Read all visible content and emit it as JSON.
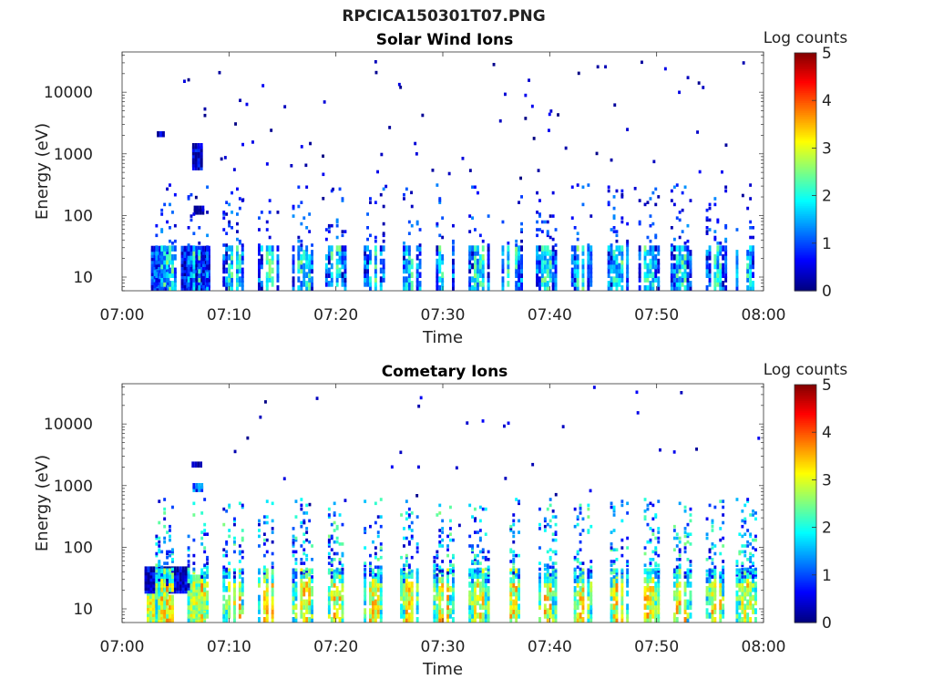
{
  "figure_title": "RPCICA150301T07.PNG",
  "chart_data": [
    {
      "type": "heatmap",
      "title": "Solar Wind Ions",
      "xlabel": "Time",
      "ylabel": "Energy (eV)",
      "y_scale": "log",
      "ylim": [
        6,
        45000
      ],
      "xlim": [
        "07:00",
        "08:00"
      ],
      "x_ticks": [
        "07:00",
        "07:10",
        "07:20",
        "07:30",
        "07:40",
        "07:50",
        "08:00"
      ],
      "y_ticks": [
        {
          "value": 10,
          "label": "10"
        },
        {
          "value": 100,
          "label": "100"
        },
        {
          "value": 1000,
          "label": "1000"
        },
        {
          "value": 10000,
          "label": "10000"
        }
      ],
      "colorbar": {
        "label": "Log counts",
        "min": 0,
        "max": 5,
        "ticks": [
          "0",
          "1",
          "2",
          "3",
          "4",
          "5"
        ],
        "colormap": "jet"
      },
      "bursts_minutes": [
        4.0,
        7.0,
        10.3,
        13.6,
        16.8,
        19.9,
        23.5,
        26.9,
        30.0,
        33.3,
        36.4,
        39.6,
        42.9,
        46.3,
        49.2,
        52.2,
        55.5,
        58.3
      ],
      "features": [
        {
          "t": 3.5,
          "tw": 1.6,
          "e0": 6,
          "e1": 28,
          "v": 0.9
        },
        {
          "t": 6.8,
          "tw": 2.6,
          "e0": 6,
          "e1": 28,
          "v": 0.6
        },
        {
          "t": 7.0,
          "tw": 0.9,
          "e0": 550,
          "e1": 1250,
          "v": 0.4
        },
        {
          "t": 3.6,
          "tw": 0.7,
          "e0": 1900,
          "e1": 2100,
          "v": 0.3
        },
        {
          "t": 7.1,
          "tw": 0.8,
          "e0": 105,
          "e1": 120,
          "v": 0.2
        }
      ]
    },
    {
      "type": "heatmap",
      "title": "Cometary Ions",
      "xlabel": "Time",
      "ylabel": "Energy (eV)",
      "y_scale": "log",
      "ylim": [
        6,
        45000
      ],
      "xlim": [
        "07:00",
        "08:00"
      ],
      "x_ticks": [
        "07:00",
        "07:10",
        "07:20",
        "07:30",
        "07:40",
        "07:50",
        "08:00"
      ],
      "y_ticks": [
        {
          "value": 10,
          "label": "10"
        },
        {
          "value": 100,
          "label": "100"
        },
        {
          "value": 1000,
          "label": "1000"
        },
        {
          "value": 10000,
          "label": "10000"
        }
      ],
      "colorbar": {
        "label": "Log counts",
        "min": 0,
        "max": 5,
        "ticks": [
          "0",
          "1",
          "2",
          "3",
          "4",
          "5"
        ],
        "colormap": "jet"
      },
      "bursts_minutes": [
        4.0,
        7.0,
        10.3,
        13.6,
        16.8,
        19.9,
        23.5,
        26.9,
        30.0,
        33.3,
        36.4,
        39.6,
        42.9,
        46.3,
        49.2,
        52.2,
        55.5,
        58.3
      ],
      "features": [
        {
          "t": 3.3,
          "tw": 2.0,
          "e0": 6,
          "e1": 18,
          "v": 2.4
        },
        {
          "t": 7.0,
          "tw": 1.3,
          "e0": 6,
          "e1": 30,
          "v": 2.2
        },
        {
          "t": 4.2,
          "tw": 4.2,
          "e0": 18,
          "e1": 40,
          "v": 0.3
        },
        {
          "t": 7.0,
          "tw": 0.8,
          "e0": 800,
          "e1": 950,
          "v": 1.0
        },
        {
          "t": 6.9,
          "tw": 0.8,
          "e0": 2000,
          "e1": 2150,
          "v": 0.3
        }
      ]
    }
  ]
}
